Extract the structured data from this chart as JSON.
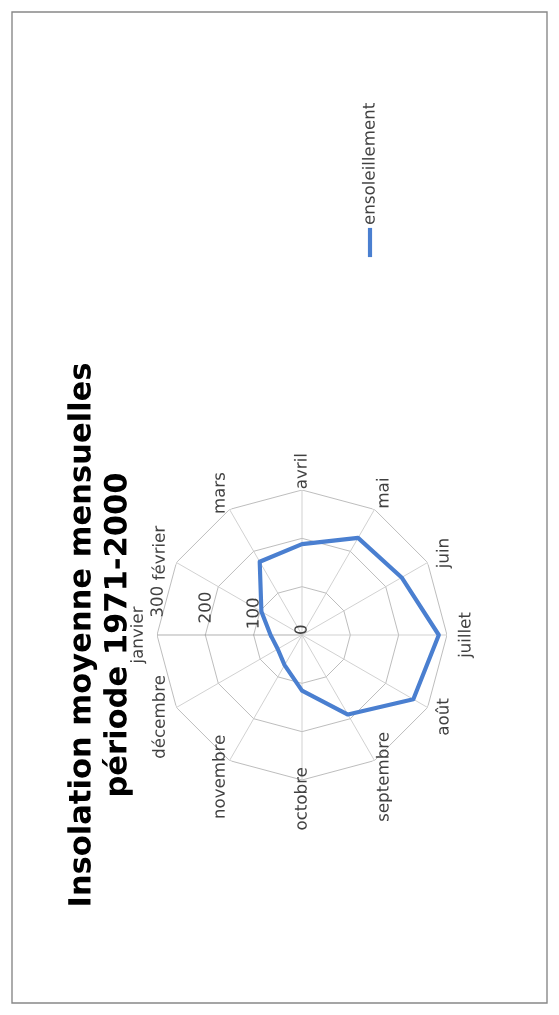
{
  "chart_data": {
    "type": "radar",
    "title": "Insolation moyenne mensuelles\npériode 1971-2000",
    "categories": [
      "janvier",
      "février",
      "mars",
      "avril",
      "mai",
      "juin",
      "juillet",
      "août",
      "septembre",
      "octobre",
      "novembre",
      "décembre"
    ],
    "series": [
      {
        "name": "ensoleillement",
        "color": "#4a7fd0",
        "values": [
          65,
          97,
          175,
          188,
          232,
          238,
          283,
          266,
          190,
          115,
          72,
          58
        ]
      }
    ],
    "ylim": [
      0,
      300
    ],
    "yticks": [
      0,
      100,
      200,
      300
    ],
    "grid": true,
    "legend": "right"
  }
}
